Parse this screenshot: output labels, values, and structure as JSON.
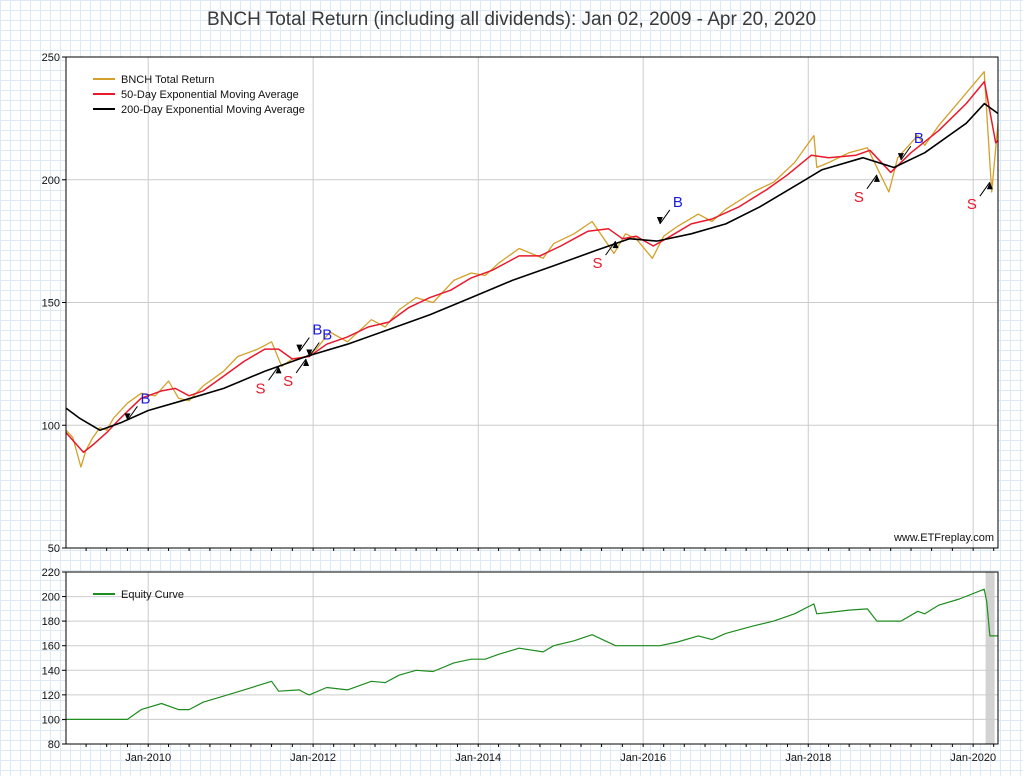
{
  "title": "BNCH Total Return (including all dividends): Jan 02, 2009 - Apr 20, 2020",
  "watermark": "www.ETFreplay.com",
  "colors": {
    "total_return": "#d4a02a",
    "ema50": "#e8192c",
    "ema200": "#000000",
    "equity": "#1e8c1e",
    "buy": "#1a1adc",
    "sell": "#e8192c",
    "grid": "#cccccc",
    "shade": "#d3d3d3"
  },
  "chart_data": [
    {
      "type": "line",
      "name": "price-panel",
      "x_ticks": [
        "Jan-2010",
        "Jan-2012",
        "Jan-2014",
        "Jan-2016",
        "Jan-2018",
        "Jan-2020"
      ],
      "xlim": [
        "2009-01-02",
        "2020-04-20"
      ],
      "ylim": [
        50,
        250
      ],
      "y_ticks": [
        50,
        100,
        150,
        200,
        250
      ],
      "legend_placement": "top-left",
      "series": [
        {
          "name": "BNCH Total Return",
          "points": [
            [
              "2009-01-02",
              98
            ],
            [
              "2009-02-01",
              95
            ],
            [
              "2009-03-09",
              83
            ],
            [
              "2009-04-01",
              90
            ],
            [
              "2009-05-01",
              95
            ],
            [
              "2009-06-01",
              99
            ],
            [
              "2009-07-01",
              98
            ],
            [
              "2009-08-01",
              103
            ],
            [
              "2009-10-01",
              109
            ],
            [
              "2009-12-01",
              113
            ],
            [
              "2010-02-01",
              112
            ],
            [
              "2010-04-01",
              118
            ],
            [
              "2010-05-15",
              111
            ],
            [
              "2010-07-01",
              110
            ],
            [
              "2010-09-01",
              116
            ],
            [
              "2010-12-01",
              122
            ],
            [
              "2011-02-01",
              128
            ],
            [
              "2011-05-01",
              131
            ],
            [
              "2011-07-01",
              134
            ],
            [
              "2011-08-15",
              124
            ],
            [
              "2011-10-01",
              127
            ],
            [
              "2011-12-01",
              128
            ],
            [
              "2012-01-15",
              131
            ],
            [
              "2012-03-15",
              138
            ],
            [
              "2012-06-01",
              134
            ],
            [
              "2012-09-15",
              143
            ],
            [
              "2012-11-15",
              140
            ],
            [
              "2013-01-15",
              147
            ],
            [
              "2013-04-01",
              152
            ],
            [
              "2013-06-15",
              150
            ],
            [
              "2013-09-15",
              159
            ],
            [
              "2013-12-01",
              162
            ],
            [
              "2014-02-01",
              161
            ],
            [
              "2014-04-01",
              166
            ],
            [
              "2014-07-01",
              172
            ],
            [
              "2014-10-15",
              168
            ],
            [
              "2014-12-01",
              174
            ],
            [
              "2015-03-01",
              178
            ],
            [
              "2015-05-20",
              183
            ],
            [
              "2015-08-25",
              170
            ],
            [
              "2015-10-15",
              178
            ],
            [
              "2015-12-01",
              176
            ],
            [
              "2016-02-11",
              168
            ],
            [
              "2016-04-01",
              177
            ],
            [
              "2016-06-01",
              181
            ],
            [
              "2016-09-01",
              186
            ],
            [
              "2016-11-01",
              183
            ],
            [
              "2017-01-01",
              188
            ],
            [
              "2017-05-01",
              195
            ],
            [
              "2017-08-01",
              199
            ],
            [
              "2017-11-01",
              207
            ],
            [
              "2018-01-26",
              218
            ],
            [
              "2018-02-08",
              205
            ],
            [
              "2018-04-01",
              207
            ],
            [
              "2018-07-01",
              211
            ],
            [
              "2018-09-20",
              213
            ],
            [
              "2018-12-24",
              195
            ],
            [
              "2019-02-01",
              209
            ],
            [
              "2019-05-01",
              218
            ],
            [
              "2019-06-01",
              214
            ],
            [
              "2019-08-01",
              222
            ],
            [
              "2019-11-01",
              232
            ],
            [
              "2020-02-19",
              244
            ],
            [
              "2020-03-23",
              195
            ],
            [
              "2020-04-20",
              223
            ]
          ]
        },
        {
          "name": "50-Day Exponential Moving Average",
          "points": [
            [
              "2009-01-02",
              97
            ],
            [
              "2009-03-20",
              89
            ],
            [
              "2009-05-01",
              92
            ],
            [
              "2009-07-01",
              97
            ],
            [
              "2009-09-01",
              103
            ],
            [
              "2009-12-01",
              111
            ],
            [
              "2010-03-01",
              114
            ],
            [
              "2010-05-01",
              115
            ],
            [
              "2010-07-01",
              112
            ],
            [
              "2010-09-01",
              114
            ],
            [
              "2010-12-01",
              120
            ],
            [
              "2011-03-01",
              126
            ],
            [
              "2011-06-01",
              131
            ],
            [
              "2011-08-01",
              131
            ],
            [
              "2011-10-01",
              127
            ],
            [
              "2011-12-15",
              128
            ],
            [
              "2012-03-01",
              133
            ],
            [
              "2012-06-01",
              136
            ],
            [
              "2012-09-01",
              140
            ],
            [
              "2012-12-01",
              142
            ],
            [
              "2013-03-01",
              148
            ],
            [
              "2013-06-01",
              152
            ],
            [
              "2013-09-01",
              155
            ],
            [
              "2013-12-01",
              160
            ],
            [
              "2014-03-01",
              163
            ],
            [
              "2014-07-01",
              169
            ],
            [
              "2014-10-01",
              169
            ],
            [
              "2015-01-01",
              173
            ],
            [
              "2015-05-01",
              179
            ],
            [
              "2015-08-01",
              180
            ],
            [
              "2015-10-01",
              176
            ],
            [
              "2015-12-01",
              177
            ],
            [
              "2016-02-15",
              173
            ],
            [
              "2016-05-01",
              177
            ],
            [
              "2016-08-01",
              182
            ],
            [
              "2016-11-01",
              184
            ],
            [
              "2017-03-01",
              189
            ],
            [
              "2017-07-01",
              196
            ],
            [
              "2017-10-01",
              202
            ],
            [
              "2018-01-15",
              210
            ],
            [
              "2018-04-01",
              209
            ],
            [
              "2018-08-01",
              210
            ],
            [
              "2018-10-01",
              212
            ],
            [
              "2019-01-01",
              203
            ],
            [
              "2019-04-01",
              211
            ],
            [
              "2019-08-01",
              220
            ],
            [
              "2019-12-01",
              231
            ],
            [
              "2020-02-20",
              240
            ],
            [
              "2020-04-10",
              215
            ],
            [
              "2020-04-20",
              216
            ]
          ]
        },
        {
          "name": "200-Day Exponential Moving Average",
          "points": [
            [
              "2009-01-02",
              107
            ],
            [
              "2009-03-01",
              103
            ],
            [
              "2009-06-01",
              98
            ],
            [
              "2009-09-01",
              101
            ],
            [
              "2010-01-01",
              106
            ],
            [
              "2010-06-01",
              110
            ],
            [
              "2010-12-01",
              115
            ],
            [
              "2011-06-01",
              122
            ],
            [
              "2011-12-01",
              128
            ],
            [
              "2012-06-01",
              133
            ],
            [
              "2012-12-01",
              139
            ],
            [
              "2013-06-01",
              145
            ],
            [
              "2013-12-01",
              152
            ],
            [
              "2014-06-01",
              159
            ],
            [
              "2014-12-01",
              165
            ],
            [
              "2015-06-01",
              171
            ],
            [
              "2015-11-01",
              176
            ],
            [
              "2016-03-01",
              175
            ],
            [
              "2016-08-01",
              178
            ],
            [
              "2017-01-01",
              182
            ],
            [
              "2017-06-01",
              189
            ],
            [
              "2017-12-01",
              199
            ],
            [
              "2018-03-01",
              204
            ],
            [
              "2018-09-01",
              209
            ],
            [
              "2019-01-15",
              205
            ],
            [
              "2019-06-01",
              211
            ],
            [
              "2019-12-01",
              223
            ],
            [
              "2020-02-20",
              231
            ],
            [
              "2020-04-20",
              227
            ]
          ]
        }
      ],
      "signals": [
        {
          "type": "B",
          "date": "2009-10-01",
          "value": 102
        },
        {
          "type": "S",
          "date": "2011-08-01",
          "value": 124
        },
        {
          "type": "B",
          "date": "2011-11-01",
          "value": 130
        },
        {
          "type": "S",
          "date": "2011-12-01",
          "value": 127
        },
        {
          "type": "B",
          "date": "2011-12-15",
          "value": 128
        },
        {
          "type": "S",
          "date": "2015-09-01",
          "value": 175
        },
        {
          "type": "B",
          "date": "2016-03-15",
          "value": 182
        },
        {
          "type": "S",
          "date": "2018-11-01",
          "value": 202
        },
        {
          "type": "B",
          "date": "2019-02-15",
          "value": 208
        },
        {
          "type": "S",
          "date": "2020-03-15",
          "value": 199
        }
      ]
    },
    {
      "type": "line",
      "name": "equity-panel",
      "x_ticks": [
        "Jan-2010",
        "Jan-2012",
        "Jan-2014",
        "Jan-2016",
        "Jan-2018",
        "Jan-2020"
      ],
      "xlim": [
        "2009-01-02",
        "2020-04-20"
      ],
      "ylim": [
        80,
        220
      ],
      "y_ticks": [
        80,
        100,
        120,
        140,
        160,
        180,
        200,
        220
      ],
      "legend_placement": "top-left",
      "series": [
        {
          "name": "Equity Curve",
          "points": [
            [
              "2009-01-02",
              100
            ],
            [
              "2009-10-01",
              100
            ],
            [
              "2009-12-01",
              108
            ],
            [
              "2010-03-01",
              113
            ],
            [
              "2010-05-15",
              108
            ],
            [
              "2010-07-01",
              108
            ],
            [
              "2010-09-01",
              114
            ],
            [
              "2010-12-01",
              119
            ],
            [
              "2011-03-01",
              124
            ],
            [
              "2011-07-01",
              131
            ],
            [
              "2011-08-01",
              123
            ],
            [
              "2011-11-01",
              124
            ],
            [
              "2011-12-01",
              121
            ],
            [
              "2011-12-15",
              120
            ],
            [
              "2012-03-01",
              126
            ],
            [
              "2012-06-01",
              124
            ],
            [
              "2012-09-15",
              131
            ],
            [
              "2012-11-15",
              130
            ],
            [
              "2013-01-15",
              136
            ],
            [
              "2013-04-01",
              140
            ],
            [
              "2013-06-15",
              139
            ],
            [
              "2013-09-15",
              146
            ],
            [
              "2013-12-01",
              149
            ],
            [
              "2014-02-01",
              149
            ],
            [
              "2014-04-01",
              153
            ],
            [
              "2014-07-01",
              158
            ],
            [
              "2014-10-15",
              155
            ],
            [
              "2014-12-01",
              160
            ],
            [
              "2015-03-01",
              164
            ],
            [
              "2015-05-20",
              169
            ],
            [
              "2015-09-01",
              160
            ],
            [
              "2016-03-15",
              160
            ],
            [
              "2016-06-01",
              163
            ],
            [
              "2016-09-01",
              168
            ],
            [
              "2016-11-01",
              165
            ],
            [
              "2017-01-01",
              170
            ],
            [
              "2017-05-01",
              176
            ],
            [
              "2017-08-01",
              180
            ],
            [
              "2017-11-01",
              186
            ],
            [
              "2018-01-26",
              194
            ],
            [
              "2018-02-08",
              186
            ],
            [
              "2018-04-01",
              187
            ],
            [
              "2018-07-01",
              189
            ],
            [
              "2018-09-20",
              190
            ],
            [
              "2018-11-01",
              180
            ],
            [
              "2019-02-15",
              180
            ],
            [
              "2019-05-01",
              188
            ],
            [
              "2019-06-01",
              186
            ],
            [
              "2019-08-01",
              193
            ],
            [
              "2019-11-01",
              198
            ],
            [
              "2020-02-19",
              206
            ],
            [
              "2020-03-01",
              196
            ],
            [
              "2020-03-15",
              168
            ],
            [
              "2020-04-20",
              168
            ]
          ]
        }
      ],
      "shaded_range": [
        "2020-02-25",
        "2020-04-05"
      ]
    }
  ]
}
